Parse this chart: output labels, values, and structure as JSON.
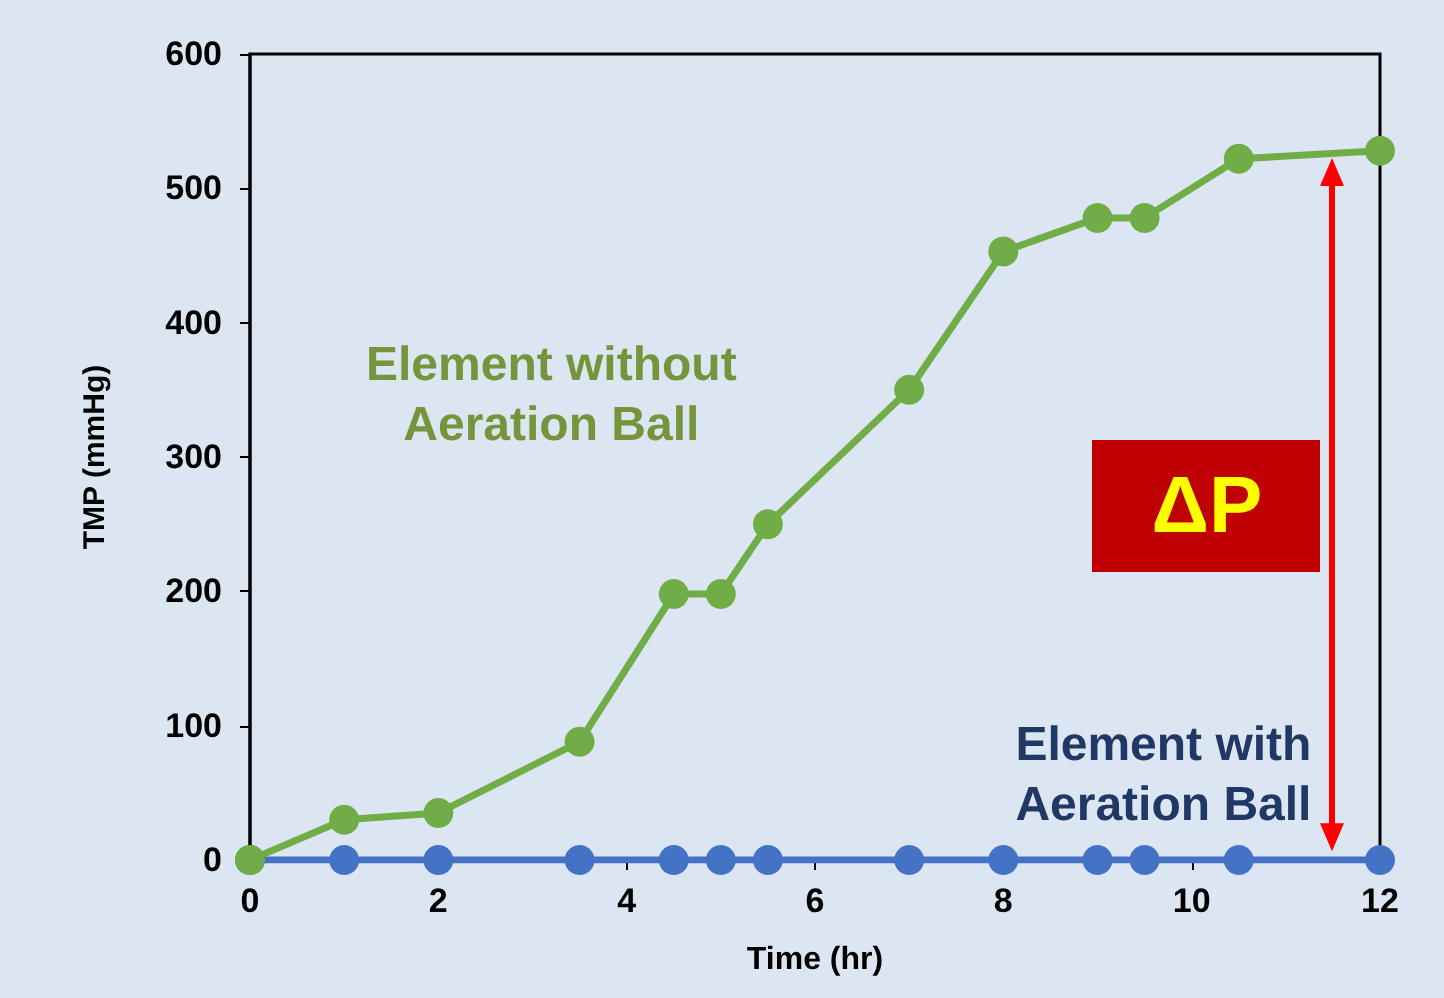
{
  "chart_data": {
    "type": "line",
    "xlabel": "Time (hr)",
    "ylabel": "TMP (mmHg)",
    "xlim": [
      0,
      12
    ],
    "xticks": [
      0,
      2,
      4,
      6,
      8,
      10,
      12
    ],
    "ylim": [
      0,
      600
    ],
    "yticks": [
      0,
      100,
      200,
      300,
      400,
      500,
      600
    ],
    "grid": false,
    "marker": "circle",
    "line_style": "solid",
    "x": [
      0,
      1,
      2,
      3.5,
      4.5,
      5,
      5.5,
      7,
      8,
      9,
      9.5,
      10.5,
      12
    ],
    "series": [
      {
        "name": "Element without\nAeration Ball",
        "color": "#70ad47",
        "values": [
          0,
          30,
          35,
          88,
          198,
          198,
          250,
          350,
          453,
          478,
          478,
          522,
          528
        ]
      },
      {
        "name": "Element with\nAeration Ball",
        "color": "#4472c4",
        "values": [
          0,
          0,
          0,
          0,
          0,
          0,
          0,
          0,
          0,
          0,
          0,
          0,
          0
        ]
      }
    ],
    "annotations": [
      "ΔP"
    ]
  }
}
